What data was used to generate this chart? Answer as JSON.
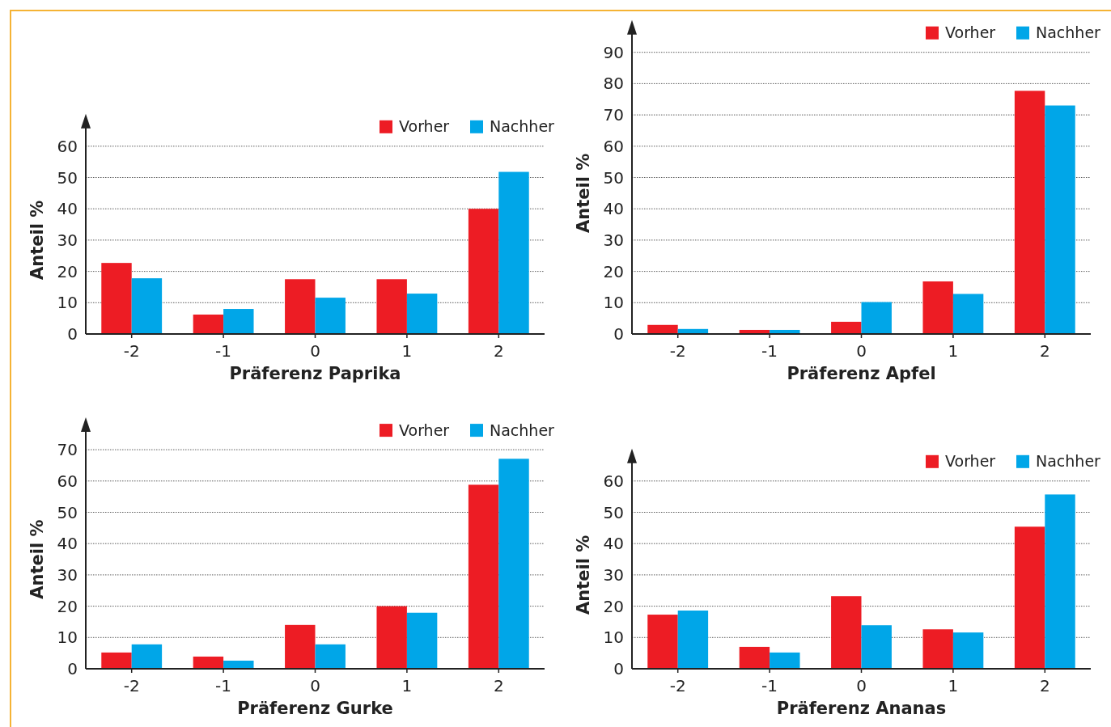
{
  "chart_data": [
    {
      "type": "bar",
      "xlabel": "Präferenz Paprika",
      "ylabel": "Anteil %",
      "categories": [
        "-2",
        "-1",
        "0",
        "1",
        "2"
      ],
      "ylim": [
        0,
        60
      ],
      "yticks": [
        0,
        10,
        20,
        30,
        40,
        50,
        60
      ],
      "grid": "y",
      "legend": "top right",
      "series": [
        {
          "name": "Vorher",
          "color": "#ed1c24",
          "values": [
            22.7,
            6.2,
            17.5,
            17.5,
            40
          ]
        },
        {
          "name": "Nachher",
          "color": "#00a6e8",
          "values": [
            17.8,
            8,
            11.6,
            12.9,
            51.8
          ]
        }
      ]
    },
    {
      "type": "bar",
      "xlabel": "Präferenz Apfel",
      "ylabel": "Anteil %",
      "categories": [
        "-2",
        "-1",
        "0",
        "1",
        "2"
      ],
      "ylim": [
        0,
        90
      ],
      "yticks": [
        0,
        10,
        20,
        30,
        40,
        50,
        60,
        70,
        80,
        90
      ],
      "grid": "y",
      "legend": "top right",
      "series": [
        {
          "name": "Vorher",
          "color": "#ed1c24",
          "values": [
            2.9,
            1.3,
            3.9,
            16.8,
            77.7
          ]
        },
        {
          "name": "Nachher",
          "color": "#00a6e8",
          "values": [
            1.6,
            1.3,
            10.2,
            12.8,
            73
          ]
        }
      ]
    },
    {
      "type": "bar",
      "xlabel": "Präferenz Gurke",
      "ylabel": "Anteil %",
      "categories": [
        "-2",
        "-1",
        "0",
        "1",
        "2"
      ],
      "ylim": [
        0,
        70
      ],
      "yticks": [
        0,
        10,
        20,
        30,
        40,
        50,
        60,
        70
      ],
      "grid": "y",
      "legend": "top right",
      "series": [
        {
          "name": "Vorher",
          "color": "#ed1c24",
          "values": [
            5.2,
            3.9,
            14,
            20,
            58.8
          ]
        },
        {
          "name": "Nachher",
          "color": "#00a6e8",
          "values": [
            7.8,
            2.6,
            7.8,
            17.9,
            67.1
          ]
        }
      ]
    },
    {
      "type": "bar",
      "xlabel": "Präferenz Ananas",
      "ylabel": "Anteil %",
      "categories": [
        "-2",
        "-1",
        "0",
        "1",
        "2"
      ],
      "ylim": [
        0,
        60
      ],
      "yticks": [
        0,
        10,
        20,
        30,
        40,
        50,
        60
      ],
      "grid": "y",
      "legend": "top right",
      "series": [
        {
          "name": "Vorher",
          "color": "#ed1c24",
          "values": [
            17.3,
            7,
            23.2,
            12.6,
            45.4
          ]
        },
        {
          "name": "Nachher",
          "color": "#00a6e8",
          "values": [
            18.6,
            5.2,
            13.9,
            11.6,
            55.7
          ]
        }
      ]
    }
  ]
}
